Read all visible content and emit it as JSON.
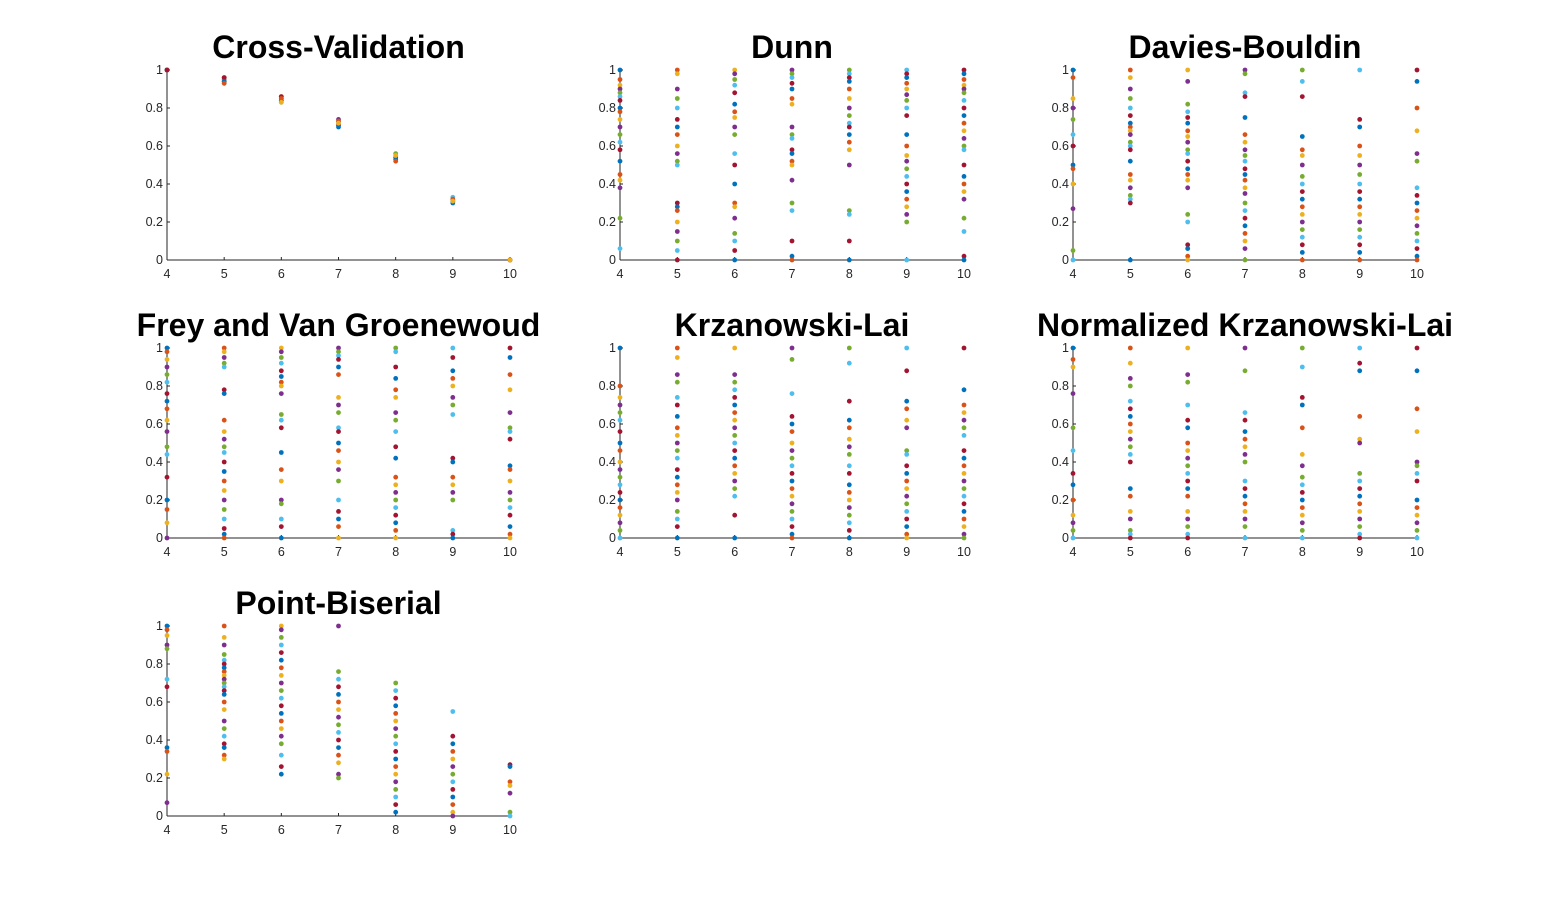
{
  "palette": [
    "#0072BD",
    "#D95319",
    "#EDB120",
    "#7E2F8E",
    "#77AC30",
    "#4DBEEE",
    "#A2142F"
  ],
  "chart_data": [
    {
      "type": "scatter",
      "title": "Cross-Validation",
      "xlim": [
        4,
        10
      ],
      "ylim": [
        0,
        1
      ],
      "xticks": [
        "4",
        "5",
        "6",
        "7",
        "8",
        "9",
        "10"
      ],
      "yticks": [
        "0",
        "0.2",
        "0.4",
        "0.6",
        "0.8",
        "1"
      ],
      "grid": false,
      "x": [
        4,
        5,
        6,
        7,
        8,
        9,
        10
      ],
      "points_y": [
        [
          1.0,
          1.0,
          1.0,
          1.0,
          1.0,
          1.0,
          1.0
        ],
        [
          0.96,
          0.95,
          0.94,
          0.95,
          0.93,
          0.96,
          0.94,
          0.93
        ],
        [
          0.86,
          0.85,
          0.84,
          0.83,
          0.86,
          0.84,
          0.85,
          0.83
        ],
        [
          0.74,
          0.73,
          0.72,
          0.71,
          0.7,
          0.73,
          0.72
        ],
        [
          0.56,
          0.55,
          0.54,
          0.53,
          0.52,
          0.55
        ],
        [
          0.33,
          0.31,
          0.3,
          0.32,
          0.31
        ],
        [
          0.0,
          0.0,
          0.0,
          0.0
        ]
      ]
    },
    {
      "type": "scatter",
      "title": "Dunn",
      "xlim": [
        4,
        10
      ],
      "ylim": [
        0,
        1
      ],
      "xticks": [
        "4",
        "5",
        "6",
        "7",
        "8",
        "9",
        "10"
      ],
      "yticks": [
        "0",
        "0.2",
        "0.4",
        "0.6",
        "0.8",
        "1"
      ],
      "grid": false,
      "x": [
        4,
        5,
        6,
        7,
        8,
        9,
        10
      ],
      "points_y": [
        [
          1.0,
          0.95,
          0.92,
          0.9,
          0.88,
          0.86,
          0.84,
          0.8,
          0.78,
          0.74,
          0.7,
          0.66,
          0.62,
          0.58,
          0.52,
          0.45,
          0.42,
          0.38,
          0.22,
          0.06
        ],
        [
          1.0,
          0.98,
          0.9,
          0.85,
          0.8,
          0.74,
          0.7,
          0.66,
          0.6,
          0.56,
          0.52,
          0.5,
          0.3,
          0.28,
          0.26,
          0.2,
          0.15,
          0.1,
          0.05,
          0.0
        ],
        [
          1.0,
          0.98,
          0.95,
          0.92,
          0.88,
          0.82,
          0.78,
          0.75,
          0.7,
          0.66,
          0.56,
          0.5,
          0.4,
          0.3,
          0.28,
          0.22,
          0.14,
          0.1,
          0.05,
          0.0
        ],
        [
          1.0,
          0.98,
          0.96,
          0.93,
          0.9,
          0.85,
          0.82,
          0.7,
          0.66,
          0.64,
          0.58,
          0.56,
          0.52,
          0.5,
          0.42,
          0.3,
          0.26,
          0.1,
          0.02,
          0.0
        ],
        [
          1.0,
          0.98,
          0.96,
          0.94,
          0.9,
          0.85,
          0.8,
          0.76,
          0.72,
          0.7,
          0.66,
          0.62,
          0.58,
          0.5,
          0.26,
          0.24,
          0.1,
          0.0
        ],
        [
          1.0,
          0.98,
          0.96,
          0.93,
          0.9,
          0.87,
          0.84,
          0.8,
          0.76,
          0.66,
          0.6,
          0.55,
          0.52,
          0.48,
          0.44,
          0.4,
          0.36,
          0.32,
          0.28,
          0.24,
          0.2,
          0.0
        ],
        [
          1.0,
          0.98,
          0.95,
          0.92,
          0.9,
          0.88,
          0.84,
          0.8,
          0.76,
          0.72,
          0.68,
          0.64,
          0.6,
          0.58,
          0.5,
          0.44,
          0.4,
          0.36,
          0.32,
          0.22,
          0.15,
          0.02,
          0.0
        ]
      ]
    },
    {
      "type": "scatter",
      "title": "Davies-Bouldin",
      "xlim": [
        4,
        10
      ],
      "ylim": [
        0,
        1
      ],
      "xticks": [
        "4",
        "5",
        "6",
        "7",
        "8",
        "9",
        "10"
      ],
      "yticks": [
        "0",
        "0.2",
        "0.4",
        "0.6",
        "0.8",
        "1"
      ],
      "grid": false,
      "x": [
        4,
        5,
        6,
        7,
        8,
        9,
        10
      ],
      "points_y": [
        [
          1.0,
          0.96,
          0.85,
          0.8,
          0.74,
          0.66,
          0.6,
          0.5,
          0.48,
          0.4,
          0.27,
          0.05,
          0.0
        ],
        [
          1.0,
          0.96,
          0.9,
          0.85,
          0.8,
          0.76,
          0.72,
          0.7,
          0.68,
          0.66,
          0.62,
          0.6,
          0.58,
          0.52,
          0.45,
          0.42,
          0.38,
          0.34,
          0.32,
          0.3,
          0.0
        ],
        [
          1.0,
          0.94,
          0.82,
          0.78,
          0.75,
          0.72,
          0.68,
          0.65,
          0.62,
          0.58,
          0.56,
          0.52,
          0.48,
          0.45,
          0.42,
          0.38,
          0.24,
          0.2,
          0.08,
          0.06,
          0.02,
          0.0
        ],
        [
          1.0,
          0.98,
          0.88,
          0.86,
          0.75,
          0.66,
          0.62,
          0.58,
          0.55,
          0.52,
          0.48,
          0.45,
          0.42,
          0.38,
          0.35,
          0.3,
          0.26,
          0.22,
          0.18,
          0.14,
          0.1,
          0.06,
          0.0
        ],
        [
          1.0,
          0.94,
          0.86,
          0.65,
          0.58,
          0.55,
          0.5,
          0.44,
          0.4,
          0.36,
          0.32,
          0.28,
          0.24,
          0.2,
          0.16,
          0.12,
          0.08,
          0.04,
          0.0
        ],
        [
          1.0,
          0.74,
          0.7,
          0.6,
          0.55,
          0.5,
          0.45,
          0.4,
          0.36,
          0.32,
          0.28,
          0.24,
          0.2,
          0.16,
          0.12,
          0.08,
          0.04,
          0.0
        ],
        [
          1.0,
          0.94,
          0.8,
          0.68,
          0.56,
          0.52,
          0.38,
          0.34,
          0.3,
          0.26,
          0.22,
          0.18,
          0.14,
          0.1,
          0.06,
          0.02,
          0.0
        ]
      ]
    },
    {
      "type": "scatter",
      "title": "Frey and Van Groenewoud",
      "xlim": [
        4,
        10
      ],
      "ylim": [
        0,
        1
      ],
      "xticks": [
        "4",
        "5",
        "6",
        "7",
        "8",
        "9",
        "10"
      ],
      "yticks": [
        "0",
        "0.2",
        "0.4",
        "0.6",
        "0.8",
        "1"
      ],
      "grid": false,
      "x": [
        4,
        5,
        6,
        7,
        8,
        9,
        10
      ],
      "points_y": [
        [
          1.0,
          0.98,
          0.94,
          0.9,
          0.86,
          0.82,
          0.76,
          0.72,
          0.68,
          0.62,
          0.56,
          0.48,
          0.44,
          0.32,
          0.2,
          0.15,
          0.08,
          0.0
        ],
        [
          1.0,
          0.98,
          0.95,
          0.92,
          0.9,
          0.78,
          0.76,
          0.62,
          0.56,
          0.52,
          0.48,
          0.45,
          0.4,
          0.35,
          0.3,
          0.25,
          0.2,
          0.15,
          0.1,
          0.05,
          0.02,
          0.0
        ],
        [
          1.0,
          0.98,
          0.95,
          0.92,
          0.88,
          0.85,
          0.82,
          0.8,
          0.76,
          0.65,
          0.62,
          0.58,
          0.45,
          0.36,
          0.3,
          0.2,
          0.18,
          0.1,
          0.06,
          0.0
        ],
        [
          1.0,
          0.98,
          0.96,
          0.94,
          0.9,
          0.86,
          0.74,
          0.7,
          0.66,
          0.58,
          0.56,
          0.5,
          0.46,
          0.4,
          0.36,
          0.3,
          0.2,
          0.14,
          0.1,
          0.06,
          0.0
        ],
        [
          1.0,
          0.98,
          0.9,
          0.84,
          0.78,
          0.74,
          0.66,
          0.62,
          0.56,
          0.48,
          0.42,
          0.32,
          0.28,
          0.24,
          0.2,
          0.16,
          0.12,
          0.08,
          0.04,
          0.0
        ],
        [
          1.0,
          0.95,
          0.88,
          0.84,
          0.8,
          0.74,
          0.7,
          0.65,
          0.42,
          0.4,
          0.32,
          0.28,
          0.24,
          0.2,
          0.04,
          0.02,
          0.0
        ],
        [
          1.0,
          0.95,
          0.86,
          0.78,
          0.66,
          0.58,
          0.56,
          0.52,
          0.38,
          0.36,
          0.3,
          0.24,
          0.2,
          0.16,
          0.12,
          0.06,
          0.02,
          0.0
        ]
      ]
    },
    {
      "type": "scatter",
      "title": "Krzanowski-Lai",
      "xlim": [
        4,
        10
      ],
      "ylim": [
        0,
        1
      ],
      "xticks": [
        "4",
        "5",
        "6",
        "7",
        "8",
        "9",
        "10"
      ],
      "yticks": [
        "0",
        "0.2",
        "0.4",
        "0.6",
        "0.8",
        "1"
      ],
      "grid": false,
      "x": [
        4,
        5,
        6,
        7,
        8,
        9,
        10
      ],
      "points_y": [
        [
          1.0,
          0.8,
          0.74,
          0.7,
          0.66,
          0.62,
          0.56,
          0.5,
          0.46,
          0.4,
          0.36,
          0.32,
          0.28,
          0.24,
          0.2,
          0.16,
          0.12,
          0.08,
          0.04,
          0.0
        ],
        [
          1.0,
          0.95,
          0.86,
          0.82,
          0.74,
          0.7,
          0.64,
          0.58,
          0.54,
          0.5,
          0.46,
          0.42,
          0.36,
          0.32,
          0.28,
          0.24,
          0.2,
          0.14,
          0.1,
          0.06,
          0.0
        ],
        [
          1.0,
          0.86,
          0.82,
          0.78,
          0.74,
          0.7,
          0.66,
          0.62,
          0.58,
          0.54,
          0.5,
          0.46,
          0.42,
          0.38,
          0.34,
          0.3,
          0.26,
          0.22,
          0.12,
          0.0
        ],
        [
          1.0,
          0.94,
          0.76,
          0.64,
          0.6,
          0.56,
          0.5,
          0.46,
          0.42,
          0.38,
          0.34,
          0.3,
          0.26,
          0.22,
          0.18,
          0.14,
          0.1,
          0.06,
          0.02,
          0.0
        ],
        [
          1.0,
          0.92,
          0.72,
          0.62,
          0.58,
          0.52,
          0.48,
          0.44,
          0.38,
          0.34,
          0.28,
          0.24,
          0.2,
          0.16,
          0.12,
          0.08,
          0.04,
          0.0
        ],
        [
          1.0,
          0.88,
          0.72,
          0.68,
          0.62,
          0.58,
          0.46,
          0.44,
          0.38,
          0.34,
          0.3,
          0.26,
          0.22,
          0.18,
          0.14,
          0.1,
          0.06,
          0.02,
          0.0
        ],
        [
          1.0,
          0.78,
          0.7,
          0.66,
          0.62,
          0.58,
          0.54,
          0.46,
          0.42,
          0.38,
          0.34,
          0.3,
          0.26,
          0.22,
          0.18,
          0.14,
          0.1,
          0.06,
          0.02,
          0.0
        ]
      ]
    },
    {
      "type": "scatter",
      "title": "Normalized Krzanowski-Lai",
      "xlim": [
        4,
        10
      ],
      "ylim": [
        0,
        1
      ],
      "xticks": [
        "4",
        "5",
        "6",
        "7",
        "8",
        "9",
        "10"
      ],
      "yticks": [
        "0",
        "0.2",
        "0.4",
        "0.6",
        "0.8",
        "1"
      ],
      "grid": false,
      "x": [
        4,
        5,
        6,
        7,
        8,
        9,
        10
      ],
      "points_y": [
        [
          1.0,
          0.94,
          0.9,
          0.76,
          0.58,
          0.46,
          0.34,
          0.28,
          0.2,
          0.12,
          0.08,
          0.04,
          0.0
        ],
        [
          1.0,
          0.92,
          0.84,
          0.8,
          0.72,
          0.68,
          0.64,
          0.6,
          0.56,
          0.52,
          0.48,
          0.44,
          0.4,
          0.26,
          0.22,
          0.14,
          0.1,
          0.04,
          0.02,
          0.0
        ],
        [
          1.0,
          0.86,
          0.82,
          0.7,
          0.62,
          0.58,
          0.5,
          0.46,
          0.42,
          0.38,
          0.34,
          0.3,
          0.26,
          0.22,
          0.14,
          0.1,
          0.06,
          0.02,
          0.0
        ],
        [
          1.0,
          0.88,
          0.66,
          0.62,
          0.56,
          0.52,
          0.48,
          0.44,
          0.4,
          0.3,
          0.26,
          0.22,
          0.18,
          0.14,
          0.1,
          0.06,
          0.0
        ],
        [
          1.0,
          0.9,
          0.74,
          0.7,
          0.58,
          0.44,
          0.38,
          0.32,
          0.28,
          0.24,
          0.2,
          0.16,
          0.12,
          0.08,
          0.04,
          0.0
        ],
        [
          1.0,
          0.92,
          0.88,
          0.64,
          0.52,
          0.5,
          0.34,
          0.3,
          0.26,
          0.22,
          0.18,
          0.14,
          0.1,
          0.06,
          0.02,
          0.0
        ],
        [
          1.0,
          0.88,
          0.68,
          0.56,
          0.4,
          0.38,
          0.34,
          0.3,
          0.2,
          0.16,
          0.12,
          0.08,
          0.04,
          0.0
        ]
      ]
    },
    {
      "type": "scatter",
      "title": "Point-Biserial",
      "xlim": [
        4,
        10
      ],
      "ylim": [
        0,
        1
      ],
      "xticks": [
        "4",
        "5",
        "6",
        "7",
        "8",
        "9",
        "10"
      ],
      "yticks": [
        "0",
        "0.2",
        "0.4",
        "0.6",
        "0.8",
        "1"
      ],
      "grid": false,
      "x": [
        4,
        5,
        6,
        7,
        8,
        9,
        10
      ],
      "points_y": [
        [
          1.0,
          0.98,
          0.95,
          0.9,
          0.88,
          0.72,
          0.68,
          0.36,
          0.34,
          0.22,
          0.07
        ],
        [
          1.0,
          0.94,
          0.9,
          0.85,
          0.82,
          0.8,
          0.78,
          0.76,
          0.74,
          0.72,
          0.7,
          0.68,
          0.66,
          0.64,
          0.6,
          0.56,
          0.5,
          0.46,
          0.42,
          0.38,
          0.36,
          0.32,
          0.3
        ],
        [
          1.0,
          0.98,
          0.94,
          0.9,
          0.86,
          0.82,
          0.78,
          0.74,
          0.7,
          0.66,
          0.62,
          0.58,
          0.54,
          0.5,
          0.46,
          0.42,
          0.38,
          0.32,
          0.26,
          0.22
        ],
        [
          1.0,
          0.76,
          0.72,
          0.68,
          0.64,
          0.6,
          0.56,
          0.52,
          0.48,
          0.44,
          0.4,
          0.36,
          0.32,
          0.28,
          0.22,
          0.2
        ],
        [
          0.7,
          0.66,
          0.62,
          0.58,
          0.54,
          0.5,
          0.46,
          0.42,
          0.38,
          0.34,
          0.3,
          0.26,
          0.22,
          0.18,
          0.14,
          0.1,
          0.06,
          0.02
        ],
        [
          0.55,
          0.42,
          0.38,
          0.34,
          0.3,
          0.26,
          0.22,
          0.18,
          0.14,
          0.1,
          0.06,
          0.02,
          0.0
        ],
        [
          0.27,
          0.26,
          0.18,
          0.16,
          0.12,
          0.02,
          0.0
        ]
      ]
    }
  ]
}
